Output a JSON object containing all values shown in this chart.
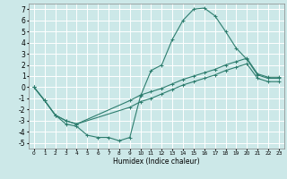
{
  "title": "",
  "xlabel": "Humidex (Indice chaleur)",
  "bg_color": "#cce8e8",
  "grid_color": "#ffffff",
  "line_color": "#2d7d6e",
  "xlim": [
    -0.5,
    23.5
  ],
  "ylim": [
    -5.5,
    7.5
  ],
  "xticks": [
    0,
    1,
    2,
    3,
    4,
    5,
    6,
    7,
    8,
    9,
    10,
    11,
    12,
    13,
    14,
    15,
    16,
    17,
    18,
    19,
    20,
    21,
    22,
    23
  ],
  "yticks": [
    -5,
    -4,
    -3,
    -2,
    -1,
    0,
    1,
    2,
    3,
    4,
    5,
    6,
    7
  ],
  "line1_x": [
    0,
    1,
    2,
    3,
    4,
    5,
    6,
    7,
    8,
    9,
    10,
    11,
    12,
    13,
    14,
    15,
    16,
    17,
    18,
    19,
    20,
    21,
    22,
    23
  ],
  "line1_y": [
    0,
    -1.2,
    -2.5,
    -3.3,
    -3.5,
    -4.3,
    -4.5,
    -4.5,
    -4.8,
    -4.5,
    -0.8,
    1.5,
    2.0,
    4.3,
    6.0,
    7.0,
    7.1,
    6.4,
    5.0,
    3.5,
    2.5,
    1.1,
    0.8,
    0.8
  ],
  "line2_x": [
    0,
    1,
    2,
    3,
    4,
    9,
    10,
    11,
    12,
    13,
    14,
    15,
    16,
    17,
    18,
    19,
    20,
    21,
    22,
    23
  ],
  "line2_y": [
    0,
    -1.2,
    -2.5,
    -3.0,
    -3.3,
    -1.2,
    -0.7,
    -0.4,
    -0.1,
    0.3,
    0.7,
    1.0,
    1.3,
    1.6,
    2.0,
    2.3,
    2.6,
    1.2,
    0.9,
    0.9
  ],
  "line3_x": [
    0,
    1,
    2,
    3,
    4,
    9,
    10,
    11,
    12,
    13,
    14,
    15,
    16,
    17,
    18,
    19,
    20,
    21,
    22,
    23
  ],
  "line3_y": [
    0,
    -1.2,
    -2.5,
    -3.0,
    -3.3,
    -1.8,
    -1.3,
    -1.0,
    -0.6,
    -0.2,
    0.2,
    0.5,
    0.8,
    1.1,
    1.5,
    1.8,
    2.1,
    0.8,
    0.5,
    0.5
  ]
}
